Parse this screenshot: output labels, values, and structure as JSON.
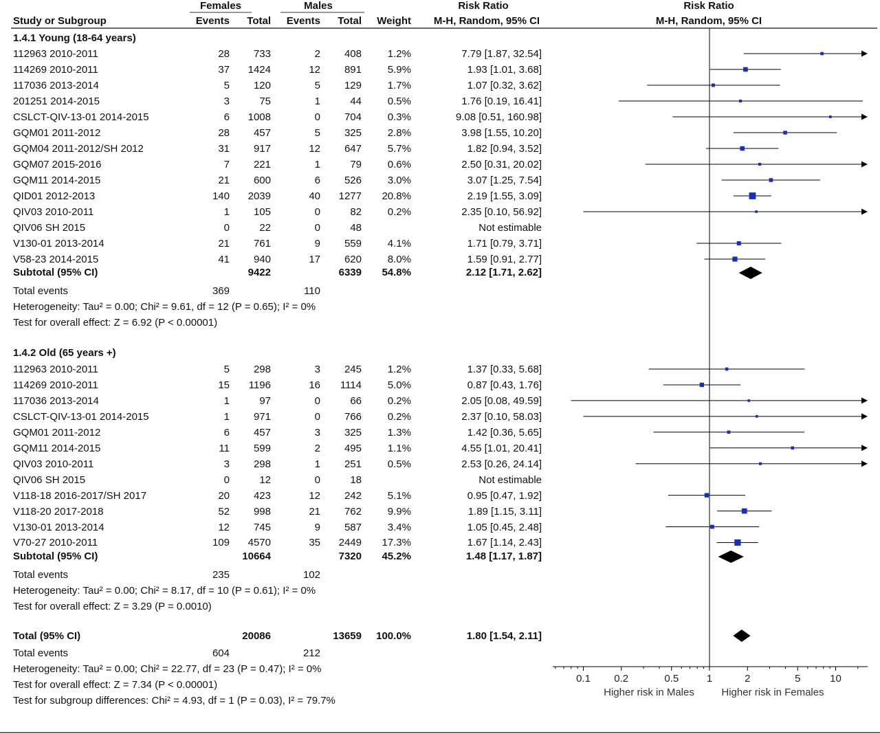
{
  "header": {
    "females": "Females",
    "males": "Males",
    "risk_ratio_left": "Risk Ratio",
    "risk_ratio_right": "Risk Ratio",
    "study_or_subgroup": "Study or Subgroup",
    "events_f": "Events",
    "total_f": "Total",
    "events_m": "Events",
    "total_m": "Total",
    "weight": "Weight",
    "method_left": "M-H, Random, 95% CI",
    "method_right": "M-H, Random, 95% CI"
  },
  "chart_data": {
    "type": "table",
    "plot_type": "forest",
    "x_scale": "log",
    "xlim": [
      0.05,
      20
    ],
    "x_ticks": [
      0.1,
      0.2,
      0.5,
      1,
      2,
      5,
      10
    ],
    "x_tick_labels": [
      "0.1",
      "0.2",
      "0.5",
      "1",
      "2",
      "5",
      "10"
    ],
    "x_label_left": "Higher risk in Males",
    "x_label_right": "Higher risk in Females",
    "reference_line": 1,
    "colors": {
      "study_marker": "#1a2fb5",
      "diamond": "#000000",
      "lines": "#000000"
    },
    "subgroups": [
      {
        "title": "1.4.1 Young (18-64 years)",
        "studies": [
          {
            "study": "112963 2010-2011",
            "events_f": "28",
            "total_f": "733",
            "events_m": "2",
            "total_m": "408",
            "weight": "1.2%",
            "rr_text": "7.79 [1.87, 32.54]",
            "rr": 7.79,
            "lo": 1.87,
            "hi": 32.54
          },
          {
            "study": "114269 2010-2011",
            "events_f": "37",
            "total_f": "1424",
            "events_m": "12",
            "total_m": "891",
            "weight": "5.9%",
            "rr_text": "1.93 [1.01, 3.68]",
            "rr": 1.93,
            "lo": 1.01,
            "hi": 3.68
          },
          {
            "study": "117036 2013-2014",
            "events_f": "5",
            "total_f": "120",
            "events_m": "5",
            "total_m": "129",
            "weight": "1.7%",
            "rr_text": "1.07 [0.32, 3.62]",
            "rr": 1.07,
            "lo": 0.32,
            "hi": 3.62
          },
          {
            "study": "201251 2014-2015",
            "events_f": "3",
            "total_f": "75",
            "events_m": "1",
            "total_m": "44",
            "weight": "0.5%",
            "rr_text": "1.76 [0.19, 16.41]",
            "rr": 1.76,
            "lo": 0.19,
            "hi": 16.41
          },
          {
            "study": "CSLCT-QIV-13-01 2014-2015",
            "events_f": "6",
            "total_f": "1008",
            "events_m": "0",
            "total_m": "704",
            "weight": "0.3%",
            "rr_text": "9.08 [0.51, 160.98]",
            "rr": 9.08,
            "lo": 0.51,
            "hi": 160.98
          },
          {
            "study": "GQM01 2011-2012",
            "events_f": "28",
            "total_f": "457",
            "events_m": "5",
            "total_m": "325",
            "weight": "2.8%",
            "rr_text": "3.98 [1.55, 10.20]",
            "rr": 3.98,
            "lo": 1.55,
            "hi": 10.2
          },
          {
            "study": "GQM04 2011-2012/SH 2012",
            "events_f": "31",
            "total_f": "917",
            "events_m": "12",
            "total_m": "647",
            "weight": "5.7%",
            "rr_text": "1.82 [0.94, 3.52]",
            "rr": 1.82,
            "lo": 0.94,
            "hi": 3.52
          },
          {
            "study": "GQM07 2015-2016",
            "events_f": "7",
            "total_f": "221",
            "events_m": "1",
            "total_m": "79",
            "weight": "0.6%",
            "rr_text": "2.50 [0.31, 20.02]",
            "rr": 2.5,
            "lo": 0.31,
            "hi": 20.02
          },
          {
            "study": "GQM11 2014-2015",
            "events_f": "21",
            "total_f": "600",
            "events_m": "6",
            "total_m": "526",
            "weight": "3.0%",
            "rr_text": "3.07 [1.25, 7.54]",
            "rr": 3.07,
            "lo": 1.25,
            "hi": 7.54
          },
          {
            "study": "QID01 2012-2013",
            "events_f": "140",
            "total_f": "2039",
            "events_m": "40",
            "total_m": "1277",
            "weight": "20.8%",
            "rr_text": "2.19 [1.55, 3.09]",
            "rr": 2.19,
            "lo": 1.55,
            "hi": 3.09
          },
          {
            "study": "QIV03 2010-2011",
            "events_f": "1",
            "total_f": "105",
            "events_m": "0",
            "total_m": "82",
            "weight": "0.2%",
            "rr_text": "2.35 [0.10, 56.92]",
            "rr": 2.35,
            "lo": 0.1,
            "hi": 56.92
          },
          {
            "study": "QIV06 SH 2015",
            "events_f": "0",
            "total_f": "22",
            "events_m": "0",
            "total_m": "48",
            "weight": "",
            "rr_text": "Not estimable",
            "rr": null,
            "lo": null,
            "hi": null
          },
          {
            "study": "V130-01 2013-2014",
            "events_f": "21",
            "total_f": "761",
            "events_m": "9",
            "total_m": "559",
            "weight": "4.1%",
            "rr_text": "1.71 [0.79, 3.71]",
            "rr": 1.71,
            "lo": 0.79,
            "hi": 3.71
          },
          {
            "study": "V58-23 2014-2015",
            "events_f": "41",
            "total_f": "940",
            "events_m": "17",
            "total_m": "620",
            "weight": "8.0%",
            "rr_text": "1.59 [0.91, 2.77]",
            "rr": 1.59,
            "lo": 0.91,
            "hi": 2.77
          }
        ],
        "subtotal": {
          "label": "Subtotal (95% CI)",
          "total_f": "9422",
          "total_m": "6339",
          "weight": "54.8%",
          "rr_text": "2.12 [1.71, 2.62]",
          "rr": 2.12,
          "lo": 1.71,
          "hi": 2.62
        },
        "total_events": {
          "label": "Total events",
          "f": "369",
          "m": "110"
        },
        "heterogeneity": "Heterogeneity: Tau² = 0.00; Chi² = 9.61, df = 12 (P = 0.65); I² = 0%",
        "overall_effect": "Test for overall effect: Z = 6.92 (P < 0.00001)"
      },
      {
        "title": "1.4.2 Old (65 years +)",
        "studies": [
          {
            "study": "112963 2010-2011",
            "events_f": "5",
            "total_f": "298",
            "events_m": "3",
            "total_m": "245",
            "weight": "1.2%",
            "rr_text": "1.37 [0.33, 5.68]",
            "rr": 1.37,
            "lo": 0.33,
            "hi": 5.68
          },
          {
            "study": "114269 2010-2011",
            "events_f": "15",
            "total_f": "1196",
            "events_m": "16",
            "total_m": "1114",
            "weight": "5.0%",
            "rr_text": "0.87 [0.43, 1.76]",
            "rr": 0.87,
            "lo": 0.43,
            "hi": 1.76
          },
          {
            "study": "117036 2013-2014",
            "events_f": "1",
            "total_f": "97",
            "events_m": "0",
            "total_m": "66",
            "weight": "0.2%",
            "rr_text": "2.05 [0.08, 49.59]",
            "rr": 2.05,
            "lo": 0.08,
            "hi": 49.59
          },
          {
            "study": "CSLCT-QIV-13-01 2014-2015",
            "events_f": "1",
            "total_f": "971",
            "events_m": "0",
            "total_m": "766",
            "weight": "0.2%",
            "rr_text": "2.37 [0.10, 58.03]",
            "rr": 2.37,
            "lo": 0.1,
            "hi": 58.03
          },
          {
            "study": "GQM01 2011-2012",
            "events_f": "6",
            "total_f": "457",
            "events_m": "3",
            "total_m": "325",
            "weight": "1.3%",
            "rr_text": "1.42 [0.36, 5.65]",
            "rr": 1.42,
            "lo": 0.36,
            "hi": 5.65
          },
          {
            "study": "GQM11 2014-2015",
            "events_f": "11",
            "total_f": "599",
            "events_m": "2",
            "total_m": "495",
            "weight": "1.1%",
            "rr_text": "4.55 [1.01, 20.41]",
            "rr": 4.55,
            "lo": 1.01,
            "hi": 20.41
          },
          {
            "study": "QIV03 2010-2011",
            "events_f": "3",
            "total_f": "298",
            "events_m": "1",
            "total_m": "251",
            "weight": "0.5%",
            "rr_text": "2.53 [0.26, 24.14]",
            "rr": 2.53,
            "lo": 0.26,
            "hi": 24.14
          },
          {
            "study": "QIV06 SH 2015",
            "events_f": "0",
            "total_f": "12",
            "events_m": "0",
            "total_m": "18",
            "weight": "",
            "rr_text": "Not estimable",
            "rr": null,
            "lo": null,
            "hi": null
          },
          {
            "study": "V118-18 2016-2017/SH 2017",
            "events_f": "20",
            "total_f": "423",
            "events_m": "12",
            "total_m": "242",
            "weight": "5.1%",
            "rr_text": "0.95 [0.47, 1.92]",
            "rr": 0.95,
            "lo": 0.47,
            "hi": 1.92
          },
          {
            "study": "V118-20 2017-2018",
            "events_f": "52",
            "total_f": "998",
            "events_m": "21",
            "total_m": "762",
            "weight": "9.9%",
            "rr_text": "1.89 [1.15, 3.11]",
            "rr": 1.89,
            "lo": 1.15,
            "hi": 3.11
          },
          {
            "study": "V130-01 2013-2014",
            "events_f": "12",
            "total_f": "745",
            "events_m": "9",
            "total_m": "587",
            "weight": "3.4%",
            "rr_text": "1.05 [0.45, 2.48]",
            "rr": 1.05,
            "lo": 0.45,
            "hi": 2.48
          },
          {
            "study": "V70-27 2010-2011",
            "events_f": "109",
            "total_f": "4570",
            "events_m": "35",
            "total_m": "2449",
            "weight": "17.3%",
            "rr_text": "1.67 [1.14, 2.43]",
            "rr": 1.67,
            "lo": 1.14,
            "hi": 2.43
          }
        ],
        "subtotal": {
          "label": "Subtotal (95% CI)",
          "total_f": "10664",
          "total_m": "7320",
          "weight": "45.2%",
          "rr_text": "1.48 [1.17, 1.87]",
          "rr": 1.48,
          "lo": 1.17,
          "hi": 1.87
        },
        "total_events": {
          "label": "Total events",
          "f": "235",
          "m": "102"
        },
        "heterogeneity": "Heterogeneity: Tau² = 0.00; Chi² = 8.17, df = 10 (P = 0.61); I² = 0%",
        "overall_effect": "Test for overall effect: Z = 3.29 (P = 0.0010)"
      }
    ],
    "total": {
      "label": "Total (95% CI)",
      "total_f": "20086",
      "total_m": "13659",
      "weight": "100.0%",
      "rr_text": "1.80 [1.54, 2.11]",
      "rr": 1.8,
      "lo": 1.54,
      "hi": 2.11,
      "total_events": {
        "label": "Total events",
        "f": "604",
        "m": "212"
      },
      "heterogeneity": "Heterogeneity: Tau² = 0.00; Chi² = 22.77, df = 23 (P = 0.47); I² = 0%",
      "overall_effect": "Test for overall effect: Z = 7.34 (P < 0.00001)",
      "subgroup_differences": "Test for subgroup differences: Chi² = 4.93, df = 1 (P = 0.03), I² = 79.7%"
    }
  }
}
